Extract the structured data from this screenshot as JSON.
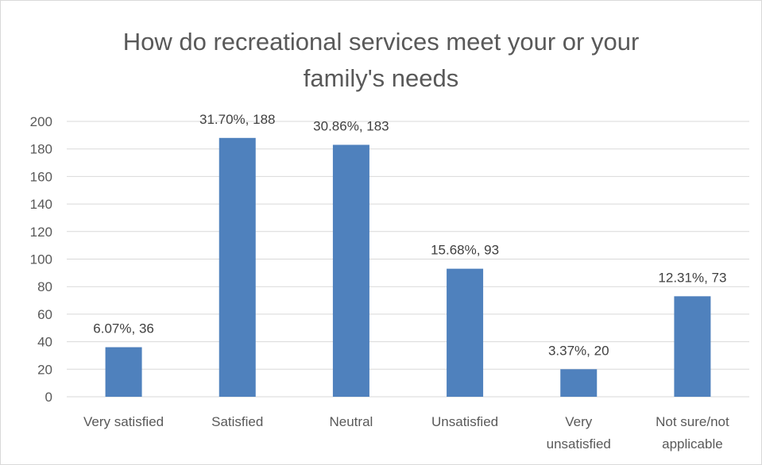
{
  "chart_data": {
    "type": "bar",
    "title_lines": [
      "How do recreational services meet your or your",
      "family's needs"
    ],
    "categories": [
      [
        "Very satisfied"
      ],
      [
        "Satisfied"
      ],
      [
        "Neutral"
      ],
      [
        "Unsatisfied"
      ],
      [
        "Very",
        "unsatisfied"
      ],
      [
        "Not sure/not",
        "applicable"
      ]
    ],
    "values": [
      36,
      188,
      183,
      93,
      20,
      73
    ],
    "data_labels": [
      "6.07%, 36",
      "31.70%, 188",
      "30.86%, 183",
      "15.68%, 93",
      "3.37%, 20",
      "12.31%, 73"
    ],
    "ylim": [
      0,
      200
    ],
    "yticks": [
      0,
      20,
      40,
      60,
      80,
      100,
      120,
      140,
      160,
      180,
      200
    ],
    "xlabel": "",
    "ylabel": "",
    "grid": true,
    "legend": "none",
    "colors": {
      "bar": "#4f81bd",
      "grid": "#d9d9d9",
      "text": "#595959"
    }
  }
}
